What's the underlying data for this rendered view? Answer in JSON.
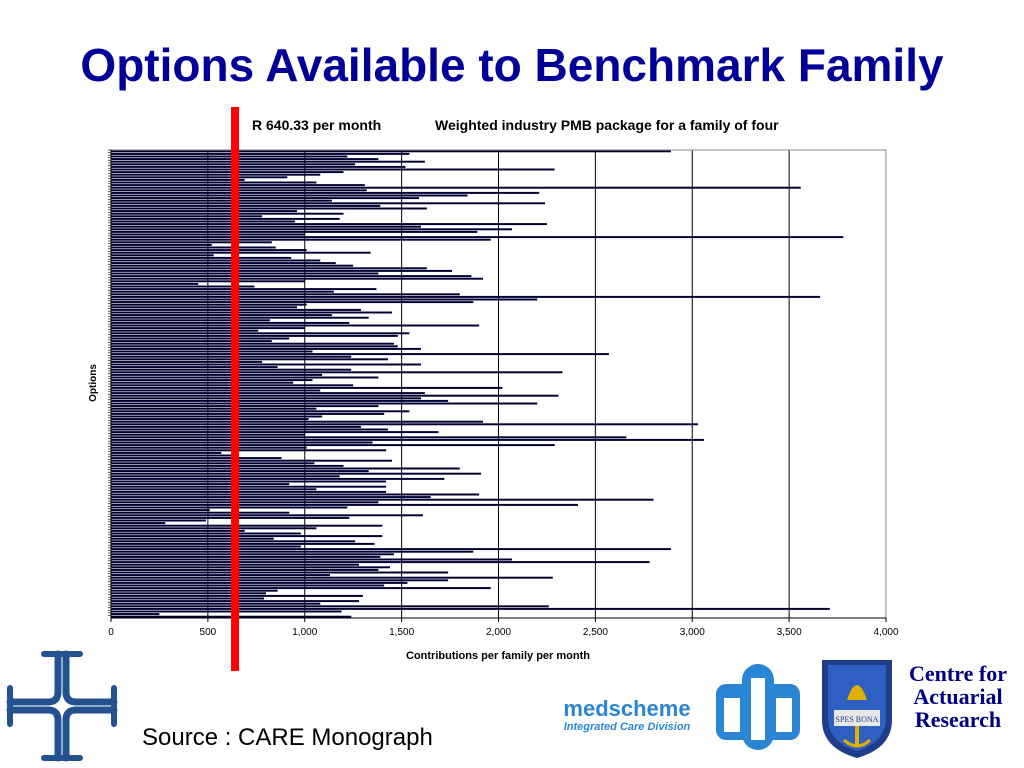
{
  "title": "Options Available to Benchmark Family",
  "source_text": "Source : CARE Monograph",
  "logos": {
    "left_logo_icon": "care-cross-icon",
    "medscheme_brand": "medscheme",
    "medscheme_division": "Integrated Care Division",
    "medscheme_icon": "medscheme-emblem-icon",
    "crest_icon": "uct-crest-icon",
    "car_text_line1": "Centre for",
    "car_text_line2": "Actuarial",
    "car_text_line3": "Research"
  },
  "colors": {
    "title": "#000099",
    "bar": "#000033",
    "reference_line": "#ff0000",
    "brand_blue": "#2a86d4",
    "car_text": "#000080"
  },
  "chart_data": {
    "type": "bar",
    "orientation": "horizontal",
    "xlabel": "Contributions per family per month",
    "ylabel": "Options",
    "xlim": [
      0,
      4000
    ],
    "xticks": [
      0,
      500,
      1000,
      1500,
      2000,
      2500,
      3000,
      3500,
      4000
    ],
    "xtick_labels": [
      "0",
      "500",
      "1,000",
      "1,500",
      "2,000",
      "2,500",
      "3,000",
      "3,500",
      "4,000"
    ],
    "grid": "vertical",
    "reference_line": {
      "value": 640.33,
      "label": "R 640.33 per month"
    },
    "annotation": "Weighted industry PMB package for a family of four",
    "values": [
      2890,
      1540,
      1220,
      1380,
      1620,
      1260,
      1520,
      2290,
      1200,
      1080,
      910,
      690,
      1060,
      1310,
      3560,
      1320,
      2210,
      1840,
      1590,
      1140,
      2240,
      1390,
      1630,
      960,
      1200,
      780,
      1180,
      950,
      2250,
      1600,
      2070,
      1890,
      1000,
      3780,
      1960,
      830,
      520,
      850,
      1010,
      1340,
      530,
      930,
      1080,
      1160,
      1250,
      1630,
      1760,
      1380,
      1860,
      1920,
      1000,
      450,
      740,
      1370,
      1150,
      1800,
      3660,
      2200,
      1870,
      1010,
      960,
      1290,
      1450,
      1140,
      1330,
      820,
      1230,
      1900,
      1000,
      760,
      1540,
      1480,
      920,
      830,
      1460,
      1480,
      1600,
      1040,
      2570,
      1240,
      1430,
      780,
      1600,
      860,
      1240,
      2330,
      1090,
      1380,
      1040,
      940,
      1250,
      2020,
      1080,
      1620,
      2310,
      1600,
      1740,
      2200,
      1380,
      1060,
      1540,
      1410,
      1090,
      1020,
      1920,
      3030,
      1290,
      1430,
      1690,
      1000,
      2660,
      3060,
      1350,
      2290,
      1010,
      1420,
      570,
      640,
      880,
      1450,
      1050,
      1200,
      1800,
      1330,
      1910,
      1180,
      1720,
      1420,
      920,
      1420,
      1060,
      1420,
      1900,
      1650,
      2800,
      1380,
      2410,
      1220,
      510,
      920,
      1610,
      1230,
      490,
      280,
      1400,
      1060,
      690,
      980,
      1400,
      840,
      1260,
      1360,
      980,
      2890,
      1870,
      1460,
      1390,
      2070,
      2780,
      1280,
      1440,
      1380,
      1740,
      1130,
      2280,
      1740,
      1530,
      1410,
      1960,
      860,
      800,
      1300,
      790,
      1280,
      1080,
      2260,
      3710,
      1190,
      250,
      1240
    ]
  }
}
